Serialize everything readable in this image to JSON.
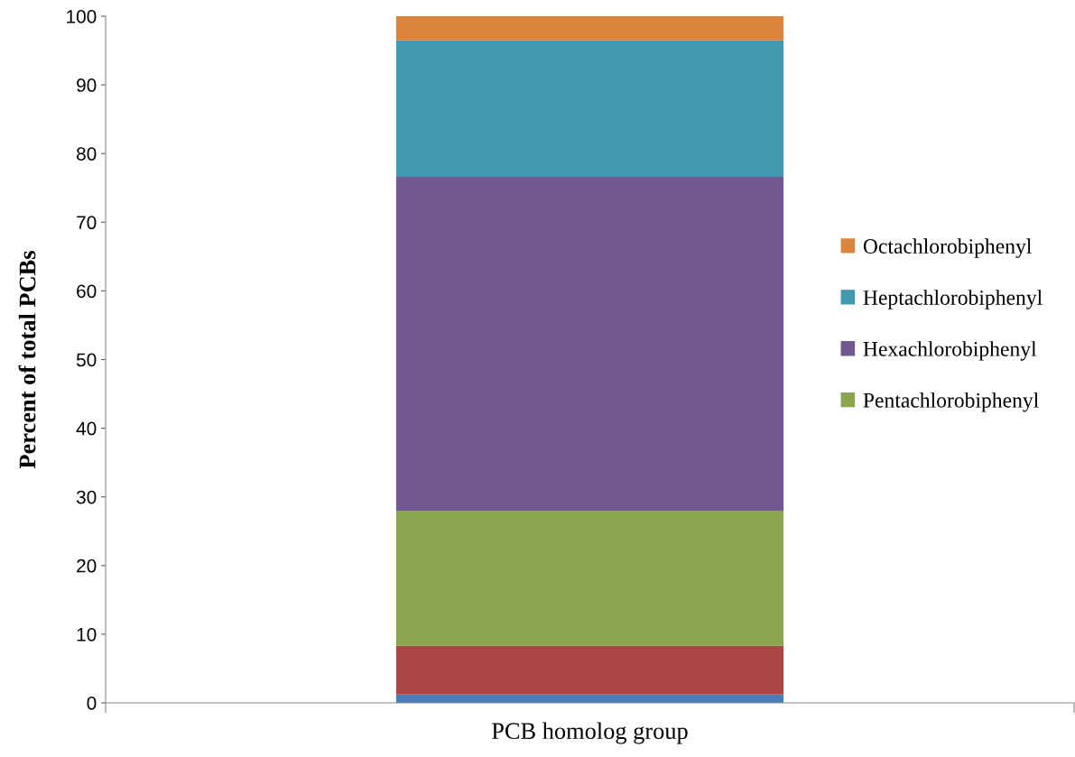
{
  "chart_data": {
    "type": "bar",
    "stacked": true,
    "ylabel": "Percent of total PCBs",
    "xlabel": "PCB homolog group",
    "categories": [
      null
    ],
    "series": [
      {
        "color": "#4a7ebb",
        "values": [
          1.2
        ]
      },
      {
        "color": "#aa4644",
        "values": [
          7.1
        ]
      },
      {
        "name": "Pentachlorobiphenyl",
        "color": "#89a54e",
        "values": [
          19.7
        ]
      },
      {
        "name": "Hexachlorobiphenyl",
        "color": "#71588f",
        "values": [
          48.6
        ]
      },
      {
        "name": "Heptachlorobiphenyl",
        "color": "#4198af",
        "values": [
          19.9
        ]
      },
      {
        "name": "Octachlorobiphenyl",
        "color": "#db843d",
        "values": [
          3.5
        ]
      }
    ],
    "ylim": [
      0,
      100
    ],
    "yticks": [
      0,
      10,
      20,
      30,
      40,
      50,
      60,
      70,
      80,
      90,
      100
    ],
    "legend": "right",
    "grid": false
  }
}
